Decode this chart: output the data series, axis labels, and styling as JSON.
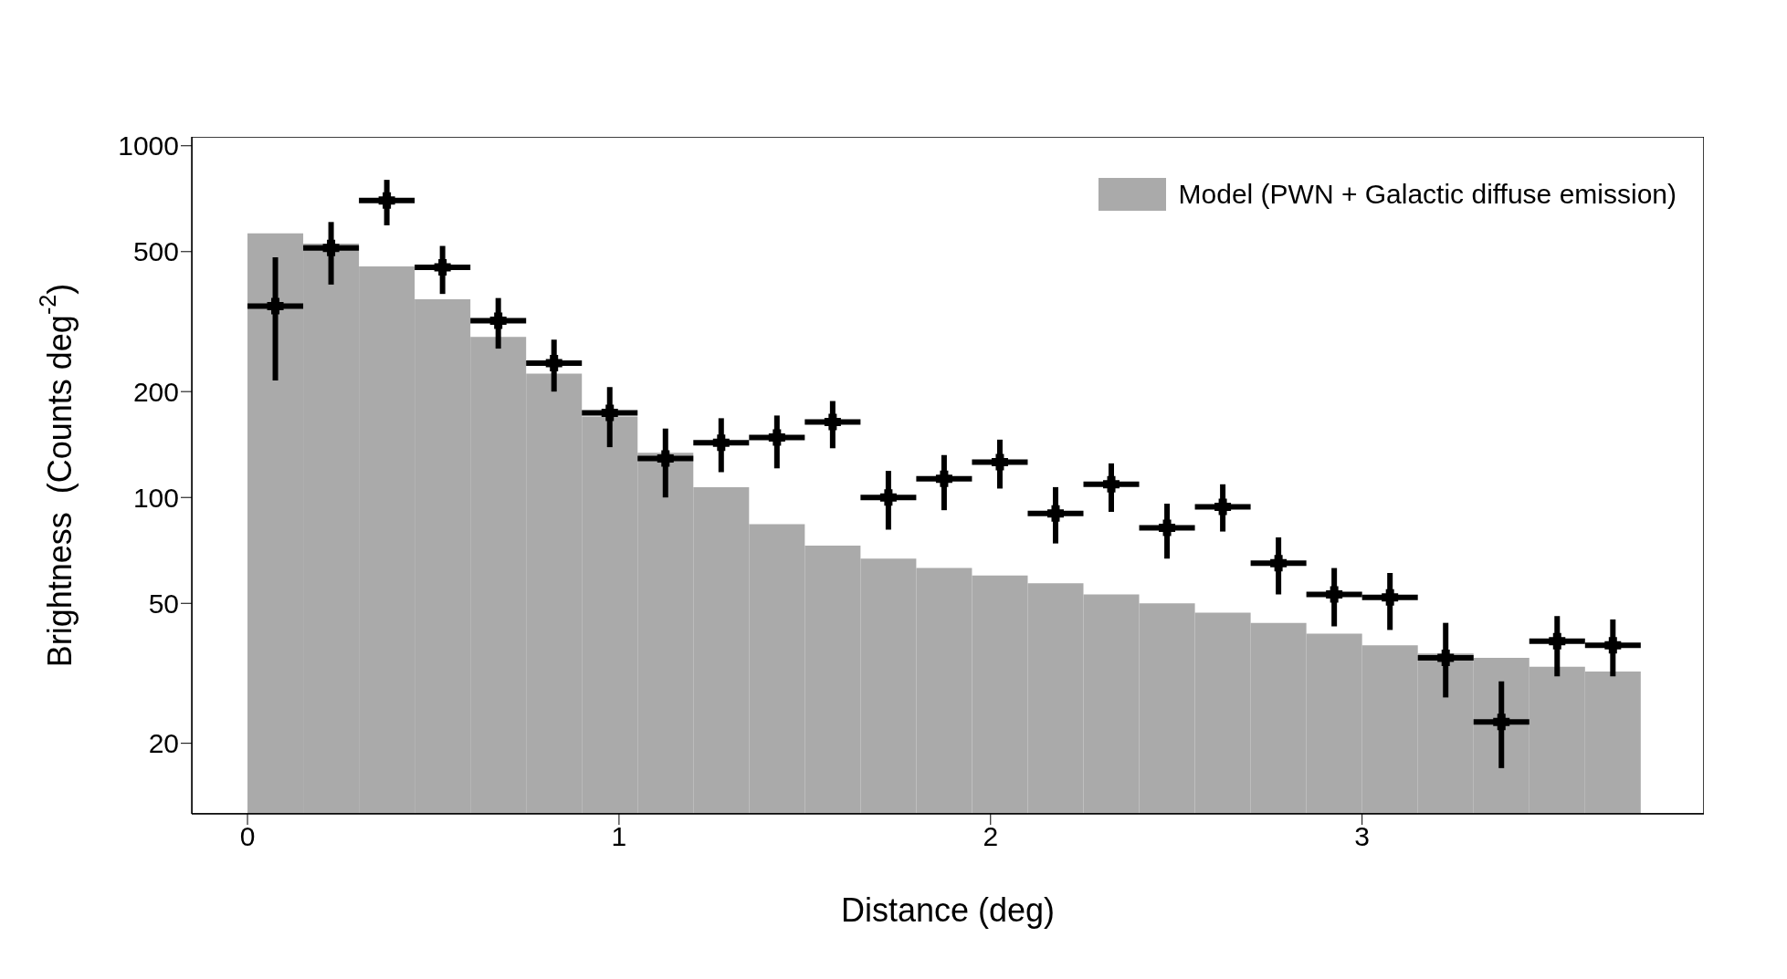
{
  "chart_data": {
    "type": "histogram",
    "xlabel": "Distance (deg)",
    "ylabel": "Brightness  (Counts deg$^{-2}$)",
    "log": "y",
    "legend": "top right",
    "xlim": [
      -0.15,
      3.92
    ],
    "ylim": [
      12.6,
      1060
    ],
    "xticks": [
      0,
      1,
      2,
      3
    ],
    "yticks": [
      20,
      50,
      100,
      200,
      500,
      1000
    ],
    "bins": [
      0,
      0.15,
      0.3,
      0.45,
      0.6,
      0.75,
      0.9,
      1.05,
      1.2,
      1.35,
      1.5,
      1.65,
      1.8,
      1.95,
      2.1,
      2.25,
      2.4,
      2.55,
      2.7,
      2.85,
      3.0,
      3.15,
      3.3,
      3.45,
      3.6,
      3.75
    ],
    "series": [
      {
        "type": "histogram",
        "name": "Model (PWN + Galactic diffuse emission)",
        "color": "#aaaaaa",
        "values": [
          564,
          527,
          454,
          366,
          286,
          225,
          170,
          134,
          107,
          84,
          73,
          67,
          63,
          60,
          57,
          53,
          50,
          47,
          44,
          41,
          38,
          36,
          35,
          33,
          32
        ]
      },
      {
        "type": "scatter",
        "color": "#000000",
        "marker": "cross",
        "x": [
          0.075,
          0.225,
          0.375,
          0.525,
          0.675,
          0.825,
          0.975,
          1.125,
          1.275,
          1.425,
          1.575,
          1.725,
          1.875,
          2.025,
          2.175,
          2.325,
          2.475,
          2.625,
          2.775,
          2.925,
          3.075,
          3.225,
          3.375,
          3.525,
          3.675
        ],
        "values": [
          350,
          512,
          699,
          451,
          318,
          241,
          174,
          129,
          143,
          148,
          164,
          100,
          113,
          126,
          90,
          109,
          82,
          94,
          65,
          53,
          52,
          35,
          23,
          39,
          38
        ],
        "errors": [
          [
            215,
            482
          ],
          [
            403,
            607
          ],
          [
            594,
            800
          ],
          [
            379,
            519
          ],
          [
            265,
            369
          ],
          [
            200,
            281
          ],
          [
            139,
            206
          ],
          [
            100,
            157
          ],
          [
            118,
            168
          ],
          [
            121,
            171
          ],
          [
            138,
            188
          ],
          [
            81,
            119
          ],
          [
            92,
            132
          ],
          [
            106,
            146
          ],
          [
            74,
            107
          ],
          [
            91,
            125
          ],
          [
            67,
            96
          ],
          [
            80,
            109
          ],
          [
            53,
            77
          ],
          [
            43,
            63
          ],
          [
            42,
            61
          ],
          [
            27,
            44
          ],
          [
            17,
            30
          ],
          [
            31,
            46
          ],
          [
            31,
            45
          ]
        ],
        "xerrors": [
          0.075,
          0.075,
          0.075,
          0.075,
          0.075,
          0.075,
          0.075,
          0.075,
          0.075,
          0.075,
          0.075,
          0.075,
          0.075,
          0.075,
          0.075,
          0.075,
          0.075,
          0.075,
          0.075,
          0.075,
          0.075,
          0.075,
          0.075,
          0.075,
          0.075
        ]
      }
    ]
  }
}
